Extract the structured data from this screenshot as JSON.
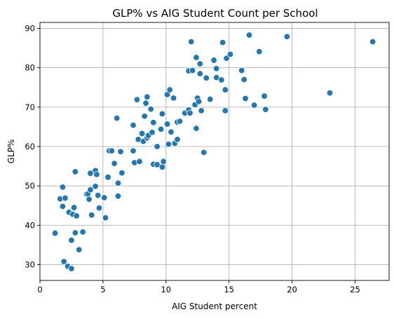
{
  "chart_data": {
    "type": "scatter",
    "title": "GLP% vs AIG Student Count per School",
    "xlabel": "AIG Student percent",
    "ylabel": "GLP%",
    "xlim": [
      0,
      27.7
    ],
    "ylim": [
      26,
      91.5
    ],
    "xticks": [
      0,
      5,
      10,
      15,
      20,
      25
    ],
    "yticks": [
      30,
      40,
      50,
      60,
      70,
      80,
      90
    ],
    "grid": true,
    "marker_color": "#1f77b4",
    "marker_edge": "#ffffff",
    "points": [
      [
        1.2,
        38.0
      ],
      [
        1.6,
        46.7
      ],
      [
        1.8,
        49.7
      ],
      [
        1.8,
        44.8
      ],
      [
        1.9,
        30.8
      ],
      [
        2.0,
        46.9
      ],
      [
        2.2,
        29.6
      ],
      [
        2.3,
        43.3
      ],
      [
        2.5,
        29.0
      ],
      [
        2.5,
        36.2
      ],
      [
        2.6,
        42.8
      ],
      [
        2.7,
        44.5
      ],
      [
        2.8,
        38.1
      ],
      [
        2.8,
        53.6
      ],
      [
        2.9,
        42.4
      ],
      [
        3.1,
        33.8
      ],
      [
        3.4,
        38.3
      ],
      [
        3.7,
        47.9
      ],
      [
        3.8,
        48.0
      ],
      [
        3.9,
        46.6
      ],
      [
        4.0,
        49.0
      ],
      [
        4.0,
        53.2
      ],
      [
        4.1,
        42.6
      ],
      [
        4.4,
        49.9
      ],
      [
        4.4,
        53.9
      ],
      [
        4.5,
        52.9
      ],
      [
        4.6,
        47.6
      ],
      [
        4.7,
        44.4
      ],
      [
        5.1,
        47.0
      ],
      [
        5.2,
        41.9
      ],
      [
        5.4,
        52.2
      ],
      [
        5.5,
        58.9
      ],
      [
        5.7,
        58.9
      ],
      [
        5.9,
        55.7
      ],
      [
        6.1,
        67.2
      ],
      [
        6.2,
        50.7
      ],
      [
        6.2,
        47.4
      ],
      [
        6.4,
        58.7
      ],
      [
        6.5,
        53.3
      ],
      [
        7.4,
        65.4
      ],
      [
        7.4,
        58.9
      ],
      [
        7.5,
        55.9
      ],
      [
        7.7,
        71.9
      ],
      [
        7.8,
        61.8
      ],
      [
        7.9,
        56.2
      ],
      [
        8.1,
        63.3
      ],
      [
        8.2,
        61.3
      ],
      [
        8.3,
        67.7
      ],
      [
        8.4,
        71.0
      ],
      [
        8.5,
        62.2
      ],
      [
        8.5,
        72.6
      ],
      [
        8.6,
        62.8
      ],
      [
        8.8,
        69.5
      ],
      [
        8.9,
        63.6
      ],
      [
        9.0,
        66.1
      ],
      [
        9.0,
        55.5
      ],
      [
        9.3,
        55.4
      ],
      [
        9.3,
        60.0
      ],
      [
        9.6,
        64.4
      ],
      [
        9.7,
        68.3
      ],
      [
        9.7,
        54.8
      ],
      [
        9.8,
        56.2
      ],
      [
        10.1,
        73.2
      ],
      [
        10.1,
        65.7
      ],
      [
        10.2,
        60.6
      ],
      [
        10.3,
        74.4
      ],
      [
        10.4,
        63.7
      ],
      [
        10.6,
        72.3
      ],
      [
        10.7,
        60.8
      ],
      [
        10.9,
        61.8
      ],
      [
        10.9,
        66.2
      ],
      [
        11.1,
        66.4
      ],
      [
        11.5,
        68.5
      ],
      [
        11.8,
        79.2
      ],
      [
        11.8,
        69.3
      ],
      [
        11.9,
        68.5
      ],
      [
        12.0,
        86.6
      ],
      [
        12.1,
        79.3
      ],
      [
        12.3,
        70.6
      ],
      [
        12.4,
        64.6
      ],
      [
        12.4,
        82.6
      ],
      [
        12.5,
        72.3
      ],
      [
        12.6,
        71.4
      ],
      [
        12.7,
        81.0
      ],
      [
        12.7,
        78.5
      ],
      [
        12.8,
        69.1
      ],
      [
        13.0,
        58.5
      ],
      [
        13.2,
        77.4
      ],
      [
        13.5,
        72.0
      ],
      [
        13.8,
        81.9
      ],
      [
        14.0,
        77.5
      ],
      [
        14.0,
        79.8
      ],
      [
        14.4,
        76.9
      ],
      [
        14.5,
        86.4
      ],
      [
        14.7,
        74.4
      ],
      [
        14.7,
        69.1
      ],
      [
        14.8,
        82.4
      ],
      [
        15.1,
        83.4
      ],
      [
        16.0,
        79.3
      ],
      [
        16.2,
        77.0
      ],
      [
        16.3,
        72.2
      ],
      [
        16.6,
        88.3
      ],
      [
        17.0,
        70.5
      ],
      [
        17.4,
        84.1
      ],
      [
        17.8,
        72.8
      ],
      [
        17.9,
        69.4
      ],
      [
        19.6,
        87.9
      ],
      [
        23.0,
        73.6
      ],
      [
        26.4,
        86.6
      ]
    ]
  }
}
